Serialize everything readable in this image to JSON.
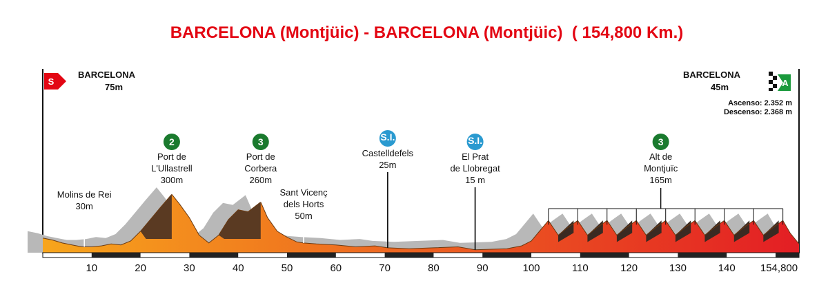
{
  "title": "BARCELONA (Montjüic) - BARCELONA (Montjüic)  ( 154,800 Km.)",
  "start": {
    "badge": "S",
    "name": "BARCELONA",
    "alt": "75m"
  },
  "finish": {
    "badge": "A",
    "name": "BARCELONA",
    "alt": "45m",
    "ascent": "Ascenso:  2.352 m",
    "descent": "Descenso: 2.368 m"
  },
  "colors": {
    "title": "#e30613",
    "start_flag": "#e30613",
    "finish_flag": "#1a9a3c",
    "climb_badge": "#1a7a2e",
    "sprint_badge": "#2a9ad0",
    "profile_start": "#f7a51c",
    "profile_end": "#e31e24",
    "climb_face": "#5a3a22",
    "ridge": "#b8b8b8"
  },
  "chart_data": {
    "type": "area",
    "x_unit": "km",
    "y_unit": "m",
    "xlim": [
      0,
      154.8
    ],
    "ylim": [
      0,
      400
    ],
    "x_ticks": [
      10,
      20,
      30,
      40,
      50,
      60,
      70,
      80,
      90,
      100,
      110,
      120,
      130,
      140
    ],
    "x_end_label": "154,800",
    "profile": [
      {
        "km": 0,
        "alt": 75
      },
      {
        "km": 2,
        "alt": 65
      },
      {
        "km": 4,
        "alt": 50
      },
      {
        "km": 6,
        "alt": 40
      },
      {
        "km": 8,
        "alt": 30
      },
      {
        "km": 10,
        "alt": 30
      },
      {
        "km": 12,
        "alt": 35
      },
      {
        "km": 14,
        "alt": 45
      },
      {
        "km": 16,
        "alt": 40
      },
      {
        "km": 18,
        "alt": 60
      },
      {
        "km": 20,
        "alt": 110
      },
      {
        "km": 22,
        "alt": 170
      },
      {
        "km": 24,
        "alt": 230
      },
      {
        "km": 26.4,
        "alt": 300
      },
      {
        "km": 28,
        "alt": 250
      },
      {
        "km": 30,
        "alt": 180
      },
      {
        "km": 32,
        "alt": 90
      },
      {
        "km": 34,
        "alt": 50
      },
      {
        "km": 36,
        "alt": 90
      },
      {
        "km": 38,
        "alt": 170
      },
      {
        "km": 40,
        "alt": 220
      },
      {
        "km": 42,
        "alt": 210
      },
      {
        "km": 44.6,
        "alt": 260
      },
      {
        "km": 46,
        "alt": 180
      },
      {
        "km": 48,
        "alt": 110
      },
      {
        "km": 50,
        "alt": 80
      },
      {
        "km": 52,
        "alt": 55
      },
      {
        "km": 53.4,
        "alt": 50
      },
      {
        "km": 56,
        "alt": 45
      },
      {
        "km": 60,
        "alt": 40
      },
      {
        "km": 64,
        "alt": 30
      },
      {
        "km": 68,
        "alt": 35
      },
      {
        "km": 70.6,
        "alt": 25
      },
      {
        "km": 75,
        "alt": 20
      },
      {
        "km": 80,
        "alt": 25
      },
      {
        "km": 85,
        "alt": 30
      },
      {
        "km": 88.5,
        "alt": 15
      },
      {
        "km": 95,
        "alt": 20
      },
      {
        "km": 98,
        "alt": 35
      },
      {
        "km": 100,
        "alt": 60
      },
      {
        "km": 102,
        "alt": 120
      },
      {
        "km": 103.5,
        "alt": 165
      },
      {
        "km": 105.5,
        "alt": 90
      },
      {
        "km": 107.5,
        "alt": 130
      },
      {
        "km": 109.5,
        "alt": 165
      },
      {
        "km": 111.5,
        "alt": 90
      },
      {
        "km": 113.5,
        "alt": 130
      },
      {
        "km": 115.5,
        "alt": 165
      },
      {
        "km": 117.5,
        "alt": 90
      },
      {
        "km": 119.5,
        "alt": 130
      },
      {
        "km": 121.5,
        "alt": 165
      },
      {
        "km": 123.5,
        "alt": 90
      },
      {
        "km": 125.5,
        "alt": 130
      },
      {
        "km": 127.5,
        "alt": 165
      },
      {
        "km": 129.5,
        "alt": 90
      },
      {
        "km": 131.5,
        "alt": 130
      },
      {
        "km": 133.5,
        "alt": 165
      },
      {
        "km": 135.5,
        "alt": 90
      },
      {
        "km": 137.5,
        "alt": 130
      },
      {
        "km": 139.5,
        "alt": 165
      },
      {
        "km": 141.5,
        "alt": 90
      },
      {
        "km": 143.5,
        "alt": 130
      },
      {
        "km": 145.5,
        "alt": 165
      },
      {
        "km": 147.5,
        "alt": 90
      },
      {
        "km": 149.5,
        "alt": 130
      },
      {
        "km": 151.5,
        "alt": 165
      },
      {
        "km": 153,
        "alt": 100
      },
      {
        "km": 154.8,
        "alt": 45
      }
    ],
    "annotations": [
      {
        "lines": [
          "Molins de Rei",
          "30m"
        ],
        "km": 8.5,
        "alt": 30,
        "badge": ""
      },
      {
        "lines": [
          "Port de",
          "L'Ullastrell",
          "300m"
        ],
        "km": 26.4,
        "alt": 300,
        "badge": "2"
      },
      {
        "lines": [
          "Port de",
          "Corbera",
          "260m"
        ],
        "km": 44.6,
        "alt": 260,
        "badge": "3"
      },
      {
        "lines": [
          "Sant Vicenç",
          "dels Horts",
          "50m"
        ],
        "km": 53.4,
        "alt": 50,
        "badge": ""
      },
      {
        "lines": [
          "Castelldefels",
          "25m"
        ],
        "km": 70.6,
        "alt": 25,
        "badge": "S.I."
      },
      {
        "lines": [
          "El Prat",
          "de Llobregat",
          "15 m"
        ],
        "km": 88.5,
        "alt": 15,
        "badge": "S.I."
      },
      {
        "lines": [
          "Alt de",
          "Montjuïc",
          "165m"
        ],
        "km": 126.5,
        "alt": 165,
        "badge": "3"
      }
    ],
    "circuit_laps_km": [
      [
        103.5,
        109.5
      ],
      [
        109.5,
        115.5
      ],
      [
        115.5,
        121.5
      ],
      [
        121.5,
        127.5
      ],
      [
        127.5,
        133.5
      ],
      [
        133.5,
        139.5
      ],
      [
        139.5,
        145.5
      ],
      [
        145.5,
        151.5
      ]
    ]
  }
}
